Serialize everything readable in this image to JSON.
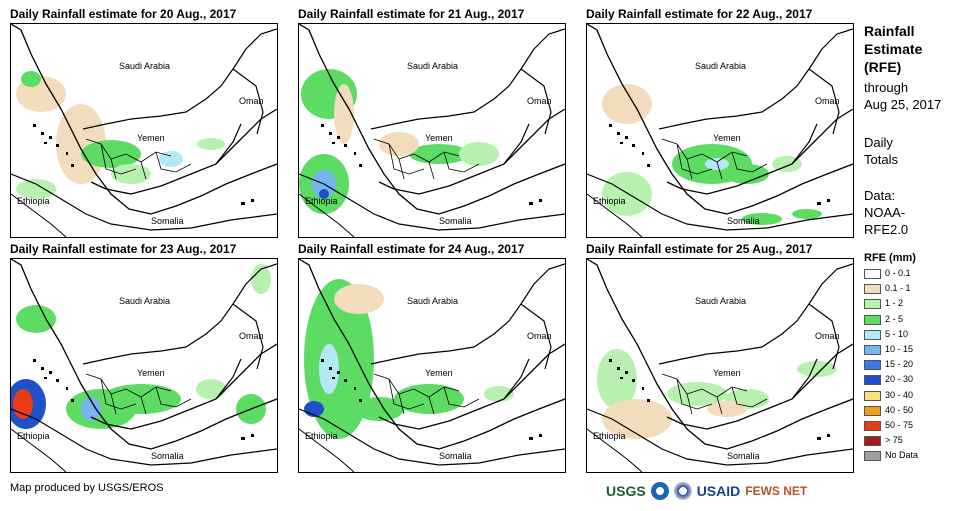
{
  "panels": [
    {
      "title": "Daily Rainfall estimate for 20 Aug., 2017"
    },
    {
      "title": "Daily Rainfall estimate for 21 Aug., 2017"
    },
    {
      "title": "Daily Rainfall estimate for 22 Aug., 2017"
    },
    {
      "title": "Daily Rainfall estimate for 23 Aug., 2017"
    },
    {
      "title": "Daily Rainfall estimate for 24 Aug., 2017"
    },
    {
      "title": "Daily Rainfall estimate for 25 Aug., 2017"
    }
  ],
  "map_labels": {
    "saudi": "Saudi Arabia",
    "oman": "Oman",
    "yemen": "Yemen",
    "ethiopia": "Ethiopia",
    "somalia": "Somalia"
  },
  "side": {
    "title": "Rainfall Estimate (RFE)",
    "title_lines": [
      "Rainfall",
      "Estimate",
      "(RFE)"
    ],
    "through": "through",
    "date": "Aug 25, 2017",
    "daily": [
      "Daily",
      "Totals"
    ],
    "data_label": "Data:",
    "data_source": [
      "NOAA-",
      "RFE2.0"
    ]
  },
  "legend": {
    "title": "RFE (mm)",
    "items": [
      {
        "label": "0 - 0.1",
        "color": "#ffffff"
      },
      {
        "label": "0.1 - 1",
        "color": "#f2dcbc"
      },
      {
        "label": "1 - 2",
        "color": "#b8f0b0"
      },
      {
        "label": "2 - 5",
        "color": "#5ddc64"
      },
      {
        "label": "5 - 10",
        "color": "#b4e8f4"
      },
      {
        "label": "10 - 15",
        "color": "#78b4f0"
      },
      {
        "label": "15 - 20",
        "color": "#3c78e6"
      },
      {
        "label": "20 - 30",
        "color": "#1e50c8"
      },
      {
        "label": "30 - 40",
        "color": "#f8e07c"
      },
      {
        "label": "40 - 50",
        "color": "#f0a018"
      },
      {
        "label": "50 - 75",
        "color": "#e83c14"
      },
      {
        "label": "> 75",
        "color": "#a01e1e"
      },
      {
        "label": "No Data",
        "color": "#a0a0a0"
      }
    ]
  },
  "footer": "Map produced by USGS/EROS",
  "logos": {
    "usgs": "USGS",
    "usaid": "USAID",
    "fewsnet": "FEWS NET"
  }
}
